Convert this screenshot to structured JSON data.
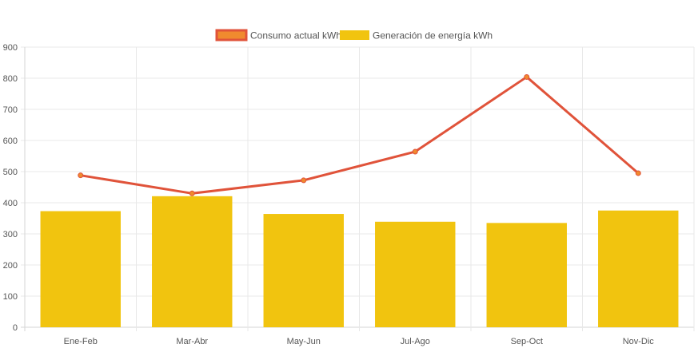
{
  "chart_data": {
    "type": "bar",
    "title": "",
    "xlabel": "",
    "ylabel": "",
    "categories": [
      "Ene-Feb",
      "Mar-Abr",
      "May-Jun",
      "Jul-Ago",
      "Sep-Oct",
      "Nov-Dic"
    ],
    "ylim": [
      0,
      900
    ],
    "yticks": [
      "0",
      "100",
      "200",
      "300",
      "400",
      "500",
      "600",
      "700",
      "800",
      "900"
    ],
    "grid": true,
    "legend_position": "top-center",
    "series": [
      {
        "name": "Consumo actual kWh",
        "type": "line",
        "color": "#e0533a",
        "fill": "#f08a2e",
        "values": [
          488,
          430,
          472,
          564,
          804,
          495
        ]
      },
      {
        "name": "Generación de energía kWh",
        "type": "bar",
        "color": "#f1c40f",
        "values": [
          373,
          421,
          364,
          339,
          335,
          375
        ]
      }
    ]
  }
}
